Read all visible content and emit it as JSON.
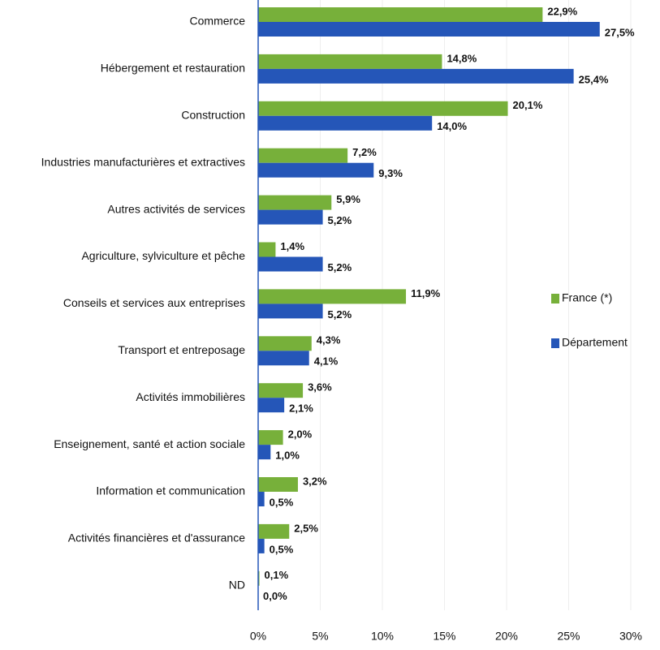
{
  "chart_data": {
    "type": "hbar",
    "categories": [
      "Commerce",
      "Hébergement et restauration",
      "Construction",
      "Industries manufacturières et extractives",
      "Autres activités de services",
      "Agriculture, sylviculture et pêche",
      "Conseils et services aux entreprises",
      "Transport et entreposage",
      "Activités immobilières",
      "Enseignement, santé et action sociale",
      "Information et communication",
      "Activités financières et d'assurance",
      "ND"
    ],
    "series": [
      {
        "name": "France (*)",
        "color": "#77b03a",
        "values": [
          22.9,
          14.8,
          20.1,
          7.2,
          5.9,
          1.4,
          11.9,
          4.3,
          3.6,
          2.0,
          3.2,
          2.5,
          0.1
        ],
        "value_labels": [
          "22,9%",
          "14,8%",
          "20,1%",
          "7,2%",
          "5,9%",
          "1,4%",
          "11,9%",
          "4,3%",
          "3,6%",
          "2,0%",
          "3,2%",
          "2,5%",
          "0,1%"
        ]
      },
      {
        "name": "Département",
        "color": "#2556b8",
        "values": [
          27.5,
          25.4,
          14.0,
          9.3,
          5.2,
          5.2,
          5.2,
          4.1,
          2.1,
          1.0,
          0.5,
          0.5,
          0.0
        ],
        "value_labels": [
          "27,5%",
          "25,4%",
          "14,0%",
          "9,3%",
          "5,2%",
          "5,2%",
          "5,2%",
          "4,1%",
          "2,1%",
          "1,0%",
          "0,5%",
          "0,5%",
          "0,0%"
        ]
      }
    ],
    "xlim": [
      0,
      30
    ],
    "xticks": [
      {
        "value": 0,
        "label": "0%"
      },
      {
        "value": 5,
        "label": "5%"
      },
      {
        "value": 10,
        "label": "10%"
      },
      {
        "value": 15,
        "label": "15%"
      },
      {
        "value": 20,
        "label": "20%"
      },
      {
        "value": 25,
        "label": "25%"
      },
      {
        "value": 30,
        "label": "30%"
      }
    ],
    "grid": true,
    "legend": "right"
  }
}
